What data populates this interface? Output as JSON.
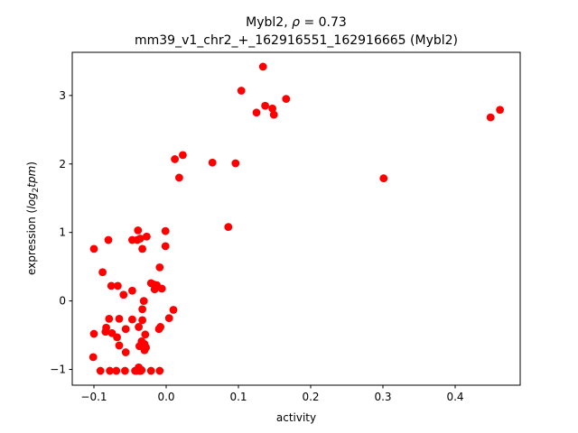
{
  "chart_data": {
    "type": "scatter",
    "title_line1_gene": "Mybl2",
    "title_line1_sep": ", ",
    "title_line1_rho_symbol": "ρ",
    "title_line1_rho_eq": " = 0.73",
    "title_line2": "mm39_v1_chr2_+_162916551_162916665 (Mybl2)",
    "xlabel": "activity",
    "ylabel_prefix": "expression (",
    "ylabel_log": "log",
    "ylabel_sub": "2",
    "ylabel_tpm": "tpm",
    "ylabel_suffix": ")",
    "xlim": [
      -0.13,
      0.49
    ],
    "ylim": [
      -1.23,
      3.63
    ],
    "x_ticks": [
      -0.1,
      0.0,
      0.1,
      0.2,
      0.3,
      0.4
    ],
    "x_tick_labels": [
      "−0.1",
      "0.0",
      "0.1",
      "0.2",
      "0.3",
      "0.4"
    ],
    "y_ticks": [
      -1,
      0,
      1,
      2,
      3
    ],
    "y_tick_labels": [
      "−1",
      "0",
      "1",
      "2",
      "3"
    ],
    "grid": false,
    "marker_color": "#ff0000",
    "points": [
      {
        "x": 0.134,
        "y": 3.42
      },
      {
        "x": 0.104,
        "y": 3.07
      },
      {
        "x": 0.166,
        "y": 2.95
      },
      {
        "x": 0.137,
        "y": 2.85
      },
      {
        "x": 0.147,
        "y": 2.81
      },
      {
        "x": 0.125,
        "y": 2.75
      },
      {
        "x": 0.149,
        "y": 2.72
      },
      {
        "x": 0.462,
        "y": 2.79
      },
      {
        "x": 0.449,
        "y": 2.68
      },
      {
        "x": 0.023,
        "y": 2.13
      },
      {
        "x": 0.012,
        "y": 2.07
      },
      {
        "x": 0.064,
        "y": 2.02
      },
      {
        "x": 0.096,
        "y": 2.01
      },
      {
        "x": 0.018,
        "y": 1.8
      },
      {
        "x": 0.301,
        "y": 1.79
      },
      {
        "x": 0.086,
        "y": 1.08
      },
      {
        "x": -0.039,
        "y": 1.03
      },
      {
        "x": -0.001,
        "y": 1.02
      },
      {
        "x": -0.027,
        "y": 0.94
      },
      {
        "x": -0.047,
        "y": 0.89
      },
      {
        "x": -0.08,
        "y": 0.89
      },
      {
        "x": -0.04,
        "y": 0.89
      },
      {
        "x": -0.036,
        "y": 0.91
      },
      {
        "x": -0.001,
        "y": 0.8
      },
      {
        "x": -0.1,
        "y": 0.76
      },
      {
        "x": -0.033,
        "y": 0.76
      },
      {
        "x": -0.009,
        "y": 0.49
      },
      {
        "x": -0.088,
        "y": 0.42
      },
      {
        "x": -0.021,
        "y": 0.26
      },
      {
        "x": -0.017,
        "y": 0.24
      },
      {
        "x": -0.013,
        "y": 0.23
      },
      {
        "x": -0.076,
        "y": 0.22
      },
      {
        "x": -0.067,
        "y": 0.22
      },
      {
        "x": -0.006,
        "y": 0.18
      },
      {
        "x": -0.016,
        "y": 0.17
      },
      {
        "x": -0.047,
        "y": 0.15
      },
      {
        "x": -0.059,
        "y": 0.09
      },
      {
        "x": -0.031,
        "y": 0.0
      },
      {
        "x": -0.033,
        "y": -0.12
      },
      {
        "x": 0.01,
        "y": -0.13
      },
      {
        "x": -0.079,
        "y": -0.26
      },
      {
        "x": -0.065,
        "y": -0.26
      },
      {
        "x": -0.047,
        "y": -0.27
      },
      {
        "x": -0.033,
        "y": -0.28
      },
      {
        "x": 0.004,
        "y": -0.25
      },
      {
        "x": -0.01,
        "y": -0.41
      },
      {
        "x": -0.008,
        "y": -0.38
      },
      {
        "x": -0.083,
        "y": -0.39
      },
      {
        "x": -0.038,
        "y": -0.38
      },
      {
        "x": -0.056,
        "y": -0.41
      },
      {
        "x": -0.084,
        "y": -0.45
      },
      {
        "x": -0.075,
        "y": -0.47
      },
      {
        "x": -0.1,
        "y": -0.48
      },
      {
        "x": -0.029,
        "y": -0.49
      },
      {
        "x": -0.068,
        "y": -0.53
      },
      {
        "x": -0.034,
        "y": -0.59
      },
      {
        "x": -0.03,
        "y": -0.63
      },
      {
        "x": -0.065,
        "y": -0.65
      },
      {
        "x": -0.037,
        "y": -0.66
      },
      {
        "x": -0.028,
        "y": -0.68
      },
      {
        "x": -0.03,
        "y": -0.72
      },
      {
        "x": -0.056,
        "y": -0.75
      },
      {
        "x": -0.101,
        "y": -0.82
      },
      {
        "x": -0.038,
        "y": -0.97
      },
      {
        "x": -0.034,
        "y": -1.01
      },
      {
        "x": -0.091,
        "y": -1.02
      },
      {
        "x": -0.078,
        "y": -1.02
      },
      {
        "x": -0.069,
        "y": -1.02
      },
      {
        "x": -0.057,
        "y": -1.02
      },
      {
        "x": -0.043,
        "y": -1.02
      },
      {
        "x": -0.041,
        "y": -1.02
      },
      {
        "x": -0.037,
        "y": -1.02
      },
      {
        "x": -0.035,
        "y": -1.02
      },
      {
        "x": -0.021,
        "y": -1.02
      },
      {
        "x": -0.009,
        "y": -1.02
      }
    ]
  }
}
